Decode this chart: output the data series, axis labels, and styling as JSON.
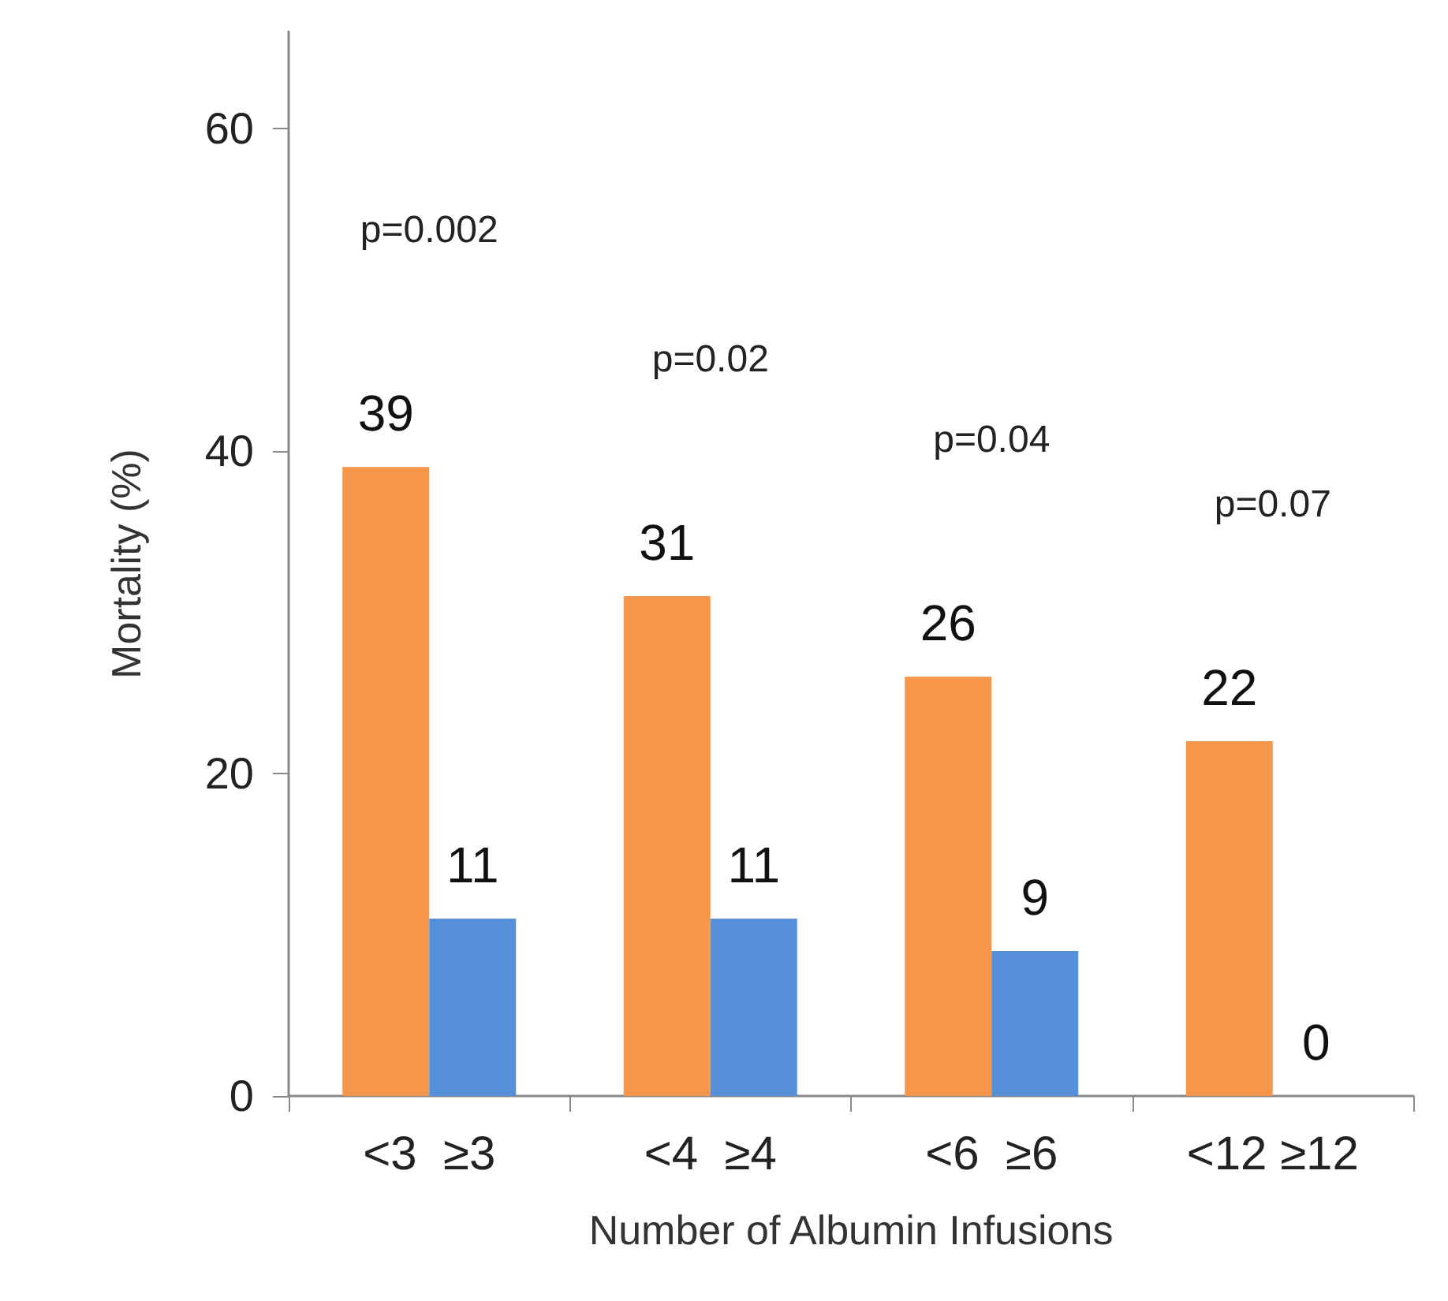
{
  "chart_data": {
    "type": "bar",
    "xlabel": "Number of Albumin Infusions",
    "ylabel": "Mortality (%)",
    "categories": [
      "<3  ≥3",
      "<4  ≥4",
      "<6  ≥6",
      "<12 ≥12"
    ],
    "series": [
      {
        "color": "#f5964a",
        "values": [
          39,
          31,
          26,
          22
        ]
      },
      {
        "color": "#5590d9",
        "values": [
          11,
          11,
          9,
          0
        ]
      }
    ],
    "ylim": [
      0,
      66
    ],
    "yticks": [
      0,
      20,
      40,
      60
    ],
    "grid": false,
    "data_labels": true,
    "annotations": [
      "p=0.002",
      "p=0.02",
      "p=0.04",
      "p=0.07"
    ]
  }
}
